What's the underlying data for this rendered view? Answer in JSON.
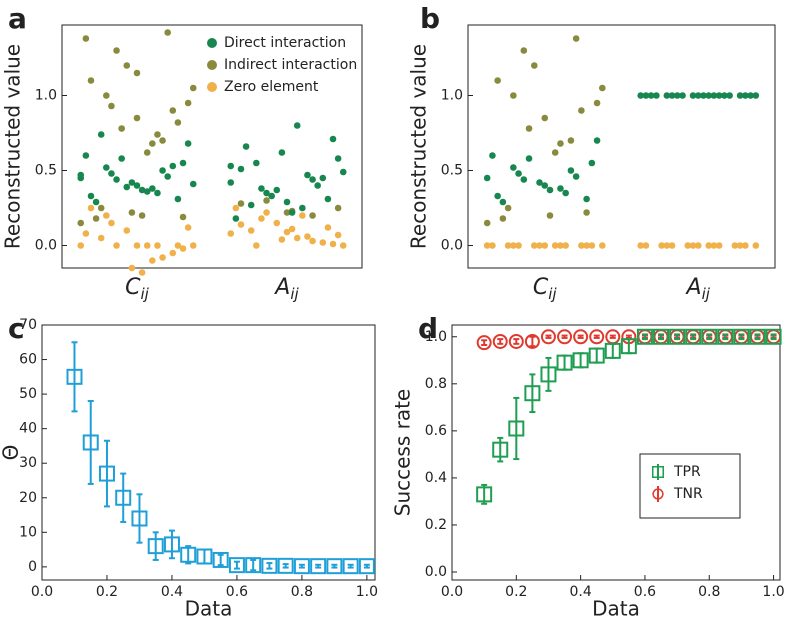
{
  "chart_data": [
    {
      "type": "strip",
      "panel_label": "a",
      "ylabel": "Reconstructed value",
      "categories": [
        {
          "symbol": "C",
          "subscript": "ij"
        },
        {
          "symbol": "A",
          "subscript": "ij"
        }
      ],
      "ylim": [
        -0.15,
        1.47
      ],
      "yticks": [
        {
          "value": 0.0,
          "label": "0.0"
        },
        {
          "value": 0.5,
          "label": "0.5"
        },
        {
          "value": 1.0,
          "label": "1.0"
        }
      ],
      "legend": "upper right",
      "series": [
        {
          "name": "Direct interaction",
          "color": "#17874f",
          "values": [
            [
              0.45,
              0.38,
              0.52,
              0.31,
              0.42,
              0.6,
              0.35,
              0.48,
              0.55,
              0.4,
              0.33,
              0.5,
              0.44,
              0.68,
              0.37,
              0.29,
              0.46,
              0.58,
              0.41,
              0.36,
              0.74,
              0.53,
              0.39,
              0.47
            ],
            [
              0.42,
              0.25,
              0.55,
              0.31,
              0.62,
              0.18,
              0.47,
              0.38,
              0.71,
              0.29,
              0.51,
              0.44,
              0.35,
              0.58,
              0.22,
              0.66,
              0.4,
              0.33,
              0.49,
              0.8,
              0.27,
              0.45,
              0.37,
              0.53
            ]
          ]
        },
        {
          "name": "Indirect interaction",
          "color": "#8a8a3e",
          "values": [
            [
              0.85,
              1.1,
              0.7,
              1.3,
              0.95,
              0.2,
              0.18,
              1.42,
              0.78,
              1.05,
              0.62,
              0.25,
              0.9,
              1.2,
              0.15,
              0.68,
              1.0,
              0.82,
              0.22,
              1.38,
              0.74,
              0.93,
              0.19,
              1.15
            ],
            [
              0.22,
              0.28,
              0.2,
              0.3,
              0.25,
              0.23
            ]
          ]
        },
        {
          "name": "Zero element",
          "color": "#f0b14a",
          "values": [
            [
              0.0,
              0.0,
              0.05,
              -0.05,
              0.1,
              0.0,
              -0.1,
              0.2,
              0.0,
              -0.15,
              0.08,
              0.0,
              0.15,
              -0.02,
              0.0,
              0.25,
              -0.08,
              0.0,
              0.12,
              -0.18
            ],
            [
              0.0,
              0.05,
              0.1,
              0.02,
              0.15,
              0.08,
              0.2,
              0.0,
              0.12,
              0.04,
              0.25,
              0.06,
              0.18,
              0.01,
              0.09,
              0.14,
              0.03,
              0.22,
              0.07,
              0.11
            ]
          ]
        }
      ]
    },
    {
      "type": "strip",
      "panel_label": "b",
      "ylabel": "Reconstructed value",
      "categories": [
        {
          "symbol": "C",
          "subscript": "ij"
        },
        {
          "symbol": "A",
          "subscript": "ij"
        }
      ],
      "ylim": [
        -0.15,
        1.47
      ],
      "yticks": [
        {
          "value": 0.0,
          "label": "0.0"
        },
        {
          "value": 0.5,
          "label": "0.5"
        },
        {
          "value": 1.0,
          "label": "1.0"
        }
      ],
      "series": [
        {
          "color": "#17874f",
          "values": [
            [
              0.45,
              0.38,
              0.52,
              0.31,
              0.42,
              0.6,
              0.35,
              0.48,
              0.55,
              0.4,
              0.33,
              0.5,
              0.44,
              0.7,
              0.37,
              0.29,
              0.46,
              0.58
            ],
            [
              1.0,
              1.0,
              1.0,
              1.0,
              1.0,
              1.0,
              1.0,
              1.0,
              1.0,
              1.0,
              1.0,
              1.0,
              1.0,
              1.0,
              1.0,
              1.0,
              1.0,
              1.0,
              1.0,
              1.0
            ]
          ]
        },
        {
          "color": "#8a8a3e",
          "values": [
            [
              0.85,
              1.1,
              0.7,
              1.3,
              0.95,
              0.2,
              0.18,
              1.38,
              0.78,
              1.05,
              0.62,
              0.25,
              0.9,
              1.2,
              0.15,
              0.68,
              1.0,
              0.22
            ],
            []
          ]
        },
        {
          "color": "#f0b14a",
          "values": [
            [
              0,
              0,
              0,
              0,
              0,
              0,
              0,
              0,
              0,
              0,
              0,
              0,
              0,
              0,
              0
            ],
            [
              0,
              0,
              0,
              0,
              0,
              0,
              0,
              0,
              0,
              0,
              0,
              0,
              0,
              0,
              0
            ]
          ]
        }
      ]
    },
    {
      "type": "errorbar",
      "panel_label": "c",
      "ylabel": "Θ",
      "xlabel": "Data",
      "xlim": [
        0,
        1.025
      ],
      "ylim": [
        -3.8,
        70
      ],
      "xticks": [
        {
          "value": 0.0,
          "label": "0.0"
        },
        {
          "value": 0.2,
          "label": "0.2"
        },
        {
          "value": 0.4,
          "label": "0.4"
        },
        {
          "value": 0.6,
          "label": "0.6"
        },
        {
          "value": 0.8,
          "label": "0.8"
        },
        {
          "value": 1.0,
          "label": "1.0"
        }
      ],
      "yticks": [
        0,
        10,
        20,
        30,
        40,
        50,
        60,
        70
      ],
      "x": [
        0.1,
        0.15,
        0.2,
        0.25,
        0.3,
        0.35,
        0.4,
        0.45,
        0.5,
        0.55,
        0.6,
        0.65,
        0.7,
        0.75,
        0.8,
        0.85,
        0.9,
        0.95,
        1.0
      ],
      "series": [
        {
          "marker": "square",
          "color": "#1f9fd8",
          "values": [
            55,
            36,
            27,
            20,
            14,
            6,
            6.5,
            3.5,
            3,
            2,
            0.5,
            0.5,
            0.3,
            0.3,
            0.2,
            0.2,
            0.2,
            0.2,
            0.2
          ],
          "errors": [
            10,
            12,
            9.5,
            7,
            7,
            4,
            4,
            2.5,
            2,
            1.5,
            1,
            1.5,
            0.8,
            0.5,
            0.4,
            0.4,
            0.4,
            0.4,
            0.4
          ]
        }
      ]
    },
    {
      "type": "errorbar",
      "panel_label": "d",
      "ylabel": "Success rate",
      "xlabel": "Data",
      "xlim": [
        0,
        1.02
      ],
      "ylim": [
        -0.034,
        1.05
      ],
      "xticks": [
        {
          "value": 0.0,
          "label": "0.0"
        },
        {
          "value": 0.2,
          "label": "0.2"
        },
        {
          "value": 0.4,
          "label": "0.4"
        },
        {
          "value": 0.6,
          "label": "0.6"
        },
        {
          "value": 0.8,
          "label": "0.8"
        },
        {
          "value": 1.0,
          "label": "1.0"
        }
      ],
      "yticks": [
        {
          "value": 0.0,
          "label": "0.0"
        },
        {
          "value": 0.2,
          "label": "0.2"
        },
        {
          "value": 0.4,
          "label": "0.4"
        },
        {
          "value": 0.6,
          "label": "0.6"
        },
        {
          "value": 0.8,
          "label": "0.8"
        },
        {
          "value": 1.0,
          "label": "1.0"
        }
      ],
      "legend": "lower right",
      "x": [
        0.1,
        0.15,
        0.2,
        0.25,
        0.3,
        0.35,
        0.4,
        0.45,
        0.5,
        0.55,
        0.6,
        0.65,
        0.7,
        0.75,
        0.8,
        0.85,
        0.9,
        0.95,
        1.0
      ],
      "series": [
        {
          "name": "TNR",
          "marker": "circle",
          "color": "#e03a2f",
          "values": [
            0.975,
            0.98,
            0.98,
            0.98,
            1,
            1,
            1,
            1,
            1,
            1,
            1,
            1,
            1,
            1,
            1,
            1,
            1,
            1,
            1
          ],
          "errors": [
            0.01,
            0.01,
            0.01,
            0.02,
            0.005,
            0.005,
            0.005,
            0.005,
            0.005,
            0.005,
            0.005,
            0.005,
            0.005,
            0.005,
            0.005,
            0.005,
            0.005,
            0.005,
            0.005
          ]
        },
        {
          "name": "TPR",
          "marker": "square",
          "color": "#1f9e52",
          "values": [
            0.33,
            0.52,
            0.61,
            0.76,
            0.84,
            0.89,
            0.9,
            0.92,
            0.94,
            0.96,
            1,
            1,
            1,
            1,
            1,
            1,
            1,
            1,
            1
          ],
          "errors": [
            0.04,
            0.05,
            0.13,
            0.08,
            0.07,
            0.03,
            0.03,
            0.03,
            0.03,
            0.03,
            0.01,
            0.01,
            0.01,
            0.01,
            0.01,
            0.01,
            0.01,
            0.01,
            0.01
          ]
        }
      ]
    }
  ]
}
